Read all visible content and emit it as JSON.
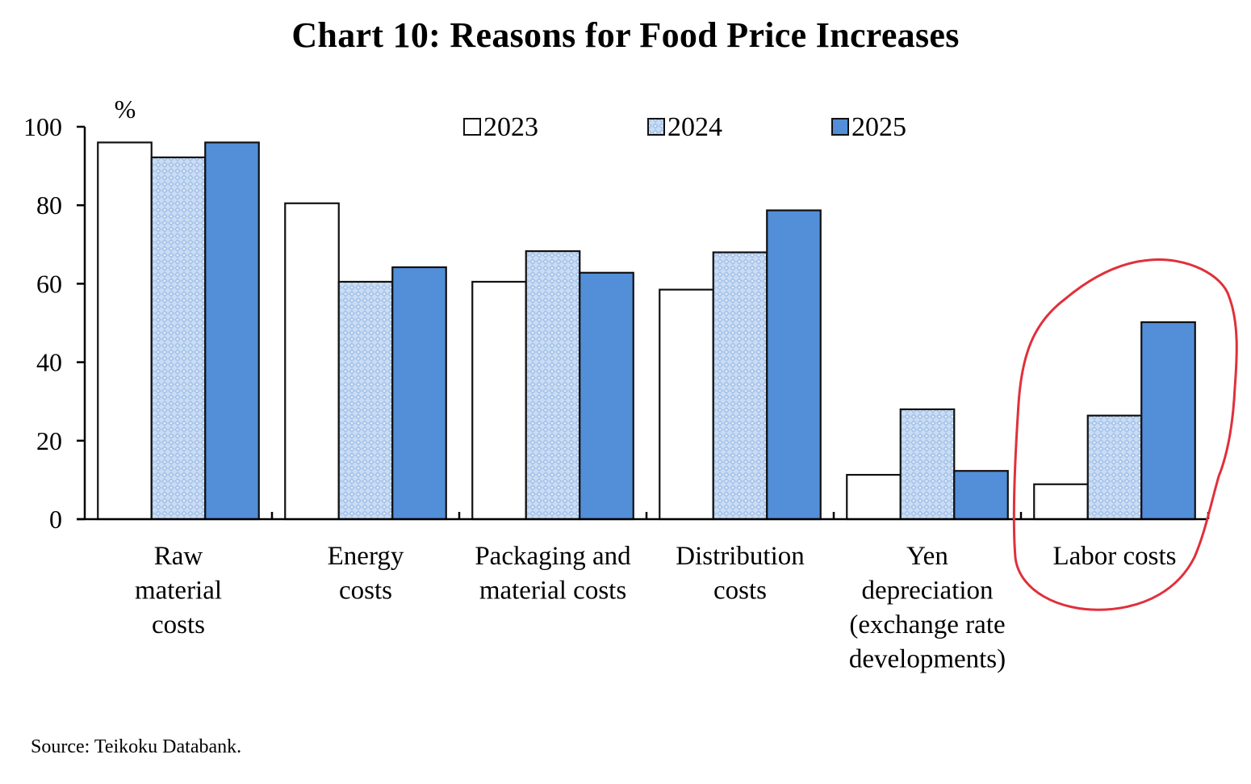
{
  "chart_data": {
    "type": "bar",
    "title": "Chart 10: Reasons for Food Price Increases",
    "unit_label": "%",
    "xlabel": "",
    "ylabel": "%",
    "ylim": [
      0,
      100
    ],
    "yticks": [
      0,
      20,
      40,
      60,
      80,
      100
    ],
    "grid": false,
    "legend_position": "top-center",
    "categories": [
      [
        "Raw",
        "material",
        "costs"
      ],
      [
        "Energy",
        "costs"
      ],
      [
        "Packaging and",
        "material costs"
      ],
      [
        "Distribution",
        "costs"
      ],
      [
        "Yen",
        "depreciation",
        "(exchange rate",
        "developments)"
      ],
      [
        "Labor costs"
      ]
    ],
    "series": [
      {
        "name": "2023",
        "style": "white",
        "fill": "#ffffff",
        "values": [
          96.0,
          80.5,
          60.5,
          58.5,
          11.3,
          8.9
        ]
      },
      {
        "name": "2024",
        "style": "hatched-light-blue",
        "fill": "#b8cfee",
        "values": [
          92.2,
          60.5,
          68.3,
          68.0,
          28.0,
          26.4
        ]
      },
      {
        "name": "2025",
        "style": "solid-blue",
        "fill": "#538ed8",
        "values": [
          96.0,
          64.2,
          62.8,
          78.7,
          12.3,
          50.2
        ]
      }
    ],
    "annotations": [
      {
        "type": "hand-drawn-circle",
        "target": "Labor costs",
        "color": "#e0303a"
      }
    ],
    "source": "Source: Teikoku Databank."
  }
}
